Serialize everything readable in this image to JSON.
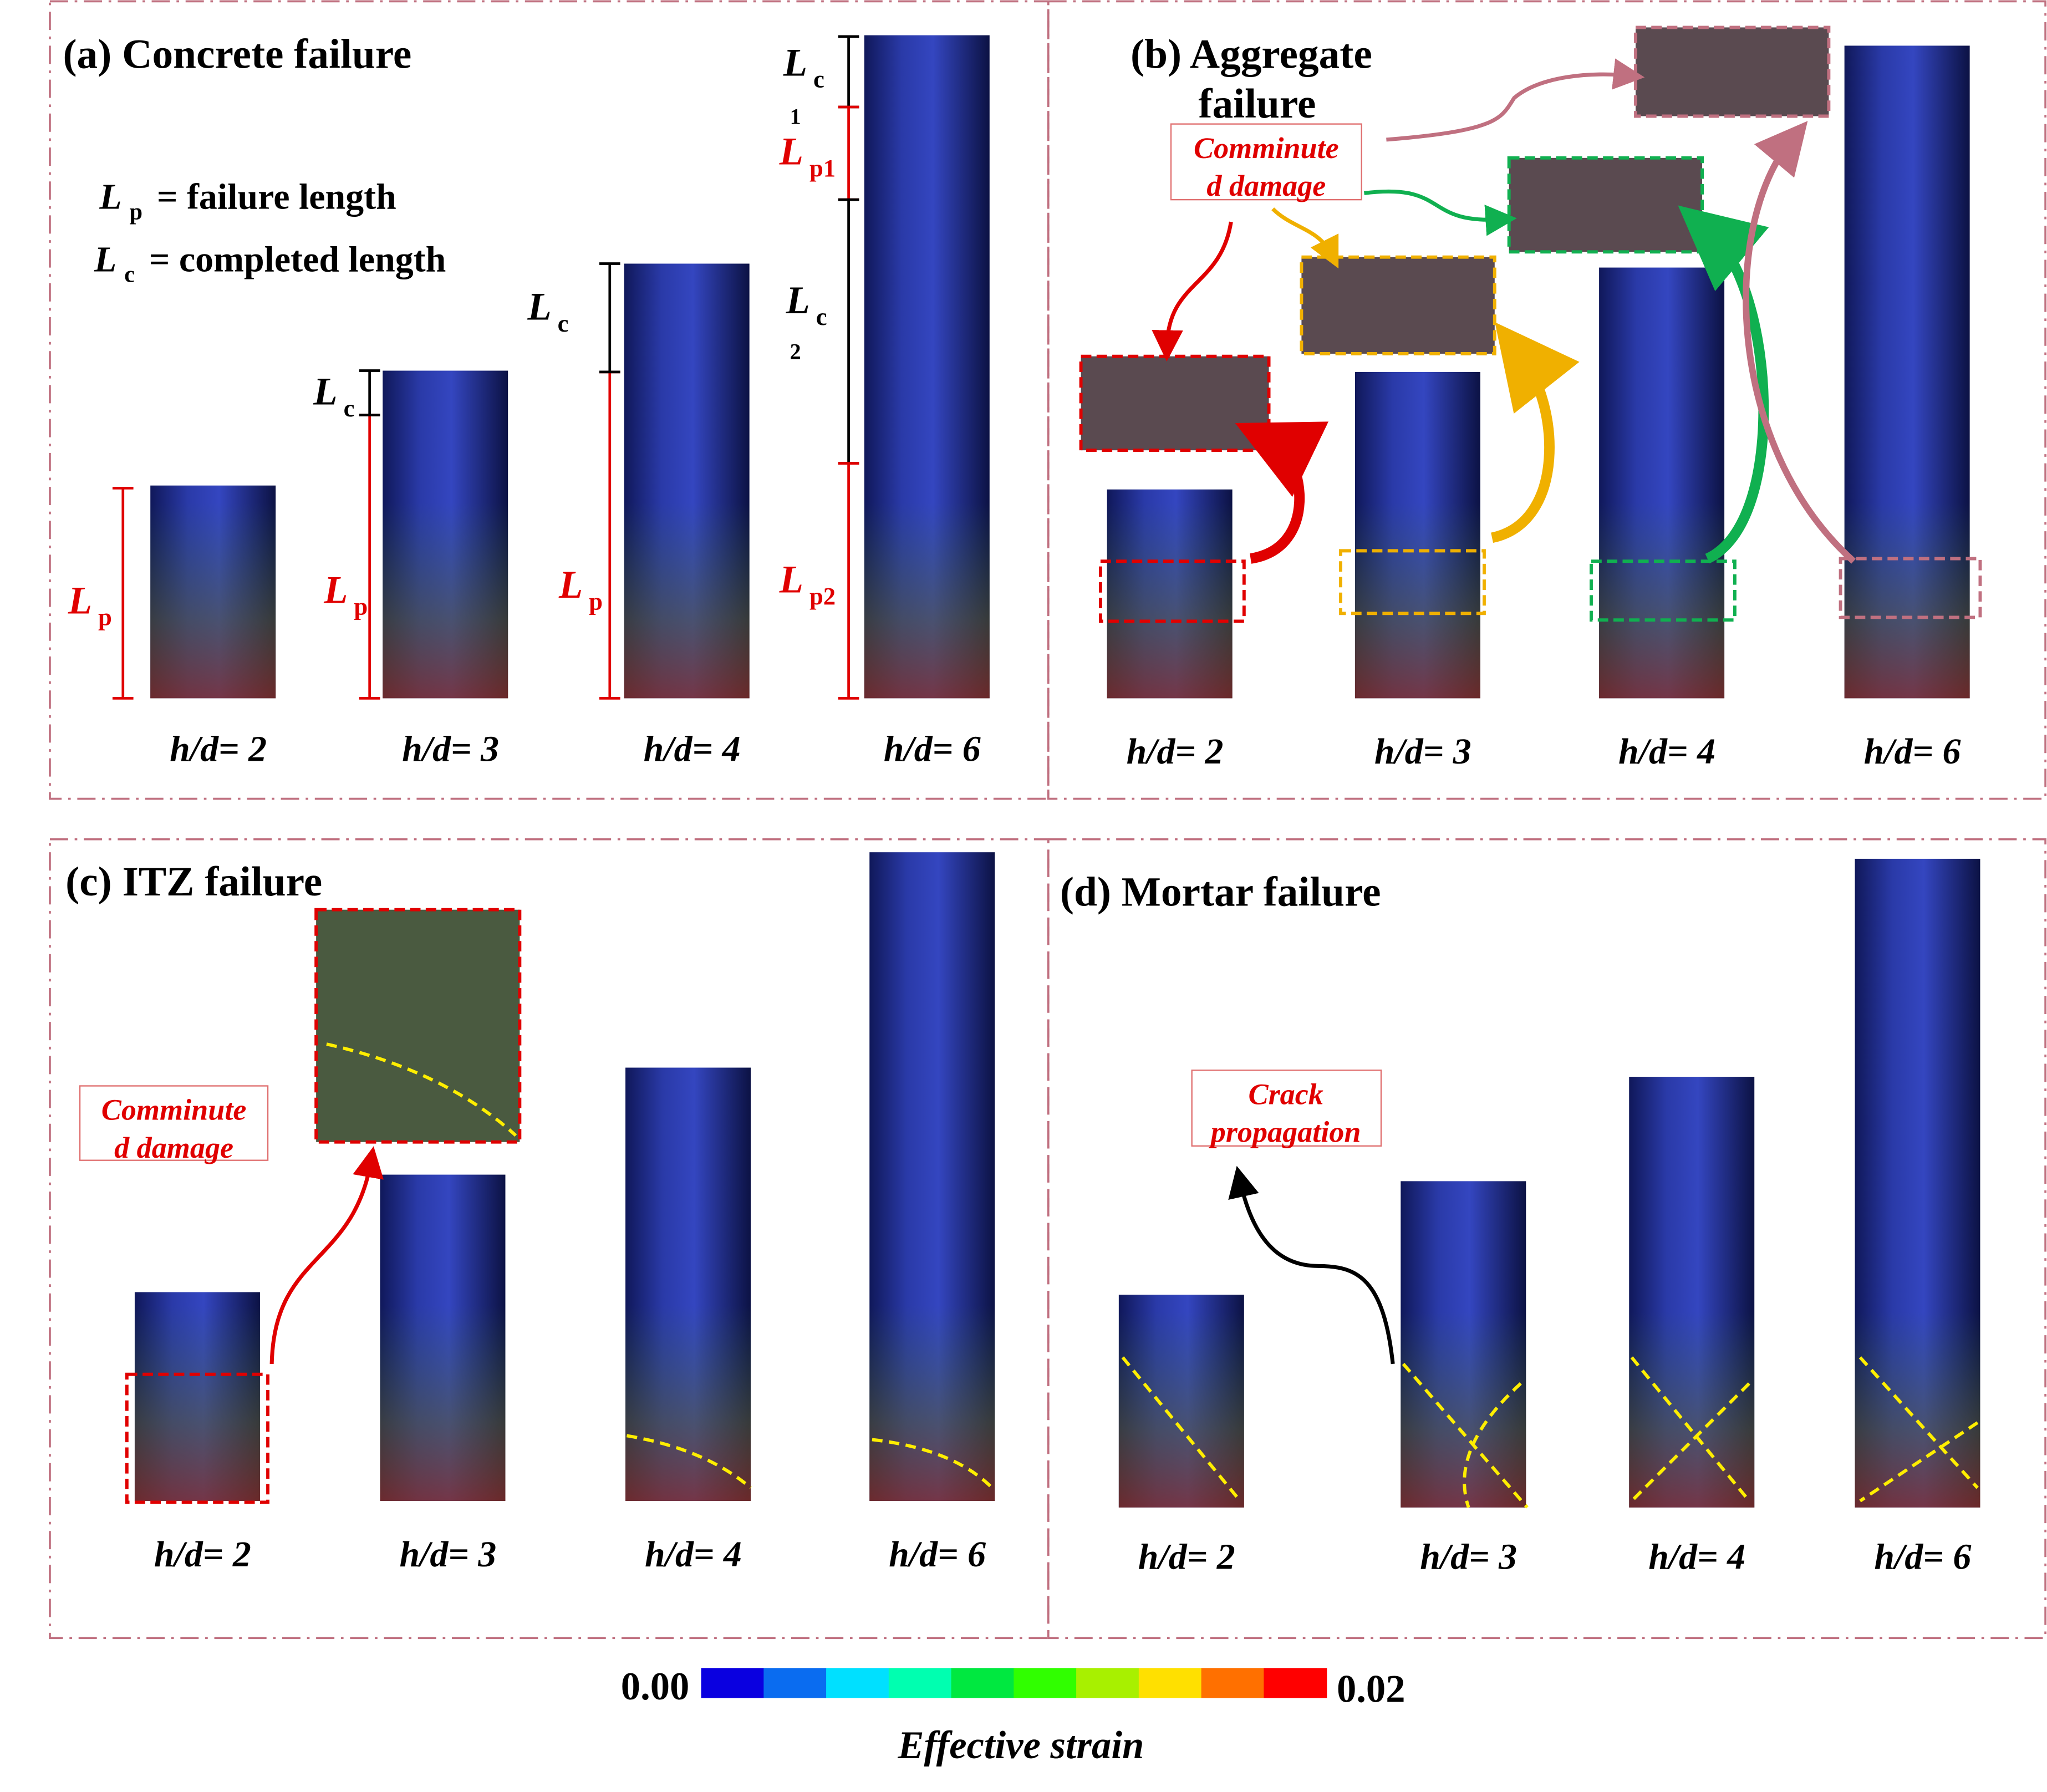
{
  "panels": {
    "a": {
      "title": "(a) Concrete failure",
      "legend_lp": "= failure length",
      "legend_lc": "= completed length",
      "L": "L",
      "p": "p",
      "c": "c",
      "p1": "p1",
      "p2": "p2",
      "c1": "1",
      "c2": "2"
    },
    "b": {
      "title_1": "(b) Aggregate",
      "title_2": "failure",
      "note_1": "Comminute",
      "note_2": "d damage"
    },
    "c": {
      "title": "(c) ITZ failure",
      "note_1": "Comminute",
      "note_2": "d damage"
    },
    "d": {
      "title": "(d) Mortar failure",
      "note_1": "Crack",
      "note_2": "propagation"
    }
  },
  "hd_labels": [
    "h/d= 2",
    "h/d= 3",
    "h/d= 4",
    "h/d= 6"
  ],
  "colorbar": {
    "min": "0.00",
    "max": "0.02",
    "label": "Effective strain",
    "colors": [
      "#0a00e0",
      "#0a6cf0",
      "#00e0ff",
      "#00ffb0",
      "#00e840",
      "#30ff00",
      "#a8f000",
      "#ffe000",
      "#ff7000",
      "#ff0000"
    ]
  },
  "highlight_colors": {
    "h2": "#e00000",
    "h3": "#f0b000",
    "h4": "#10b050",
    "h6": "#c07080"
  }
}
